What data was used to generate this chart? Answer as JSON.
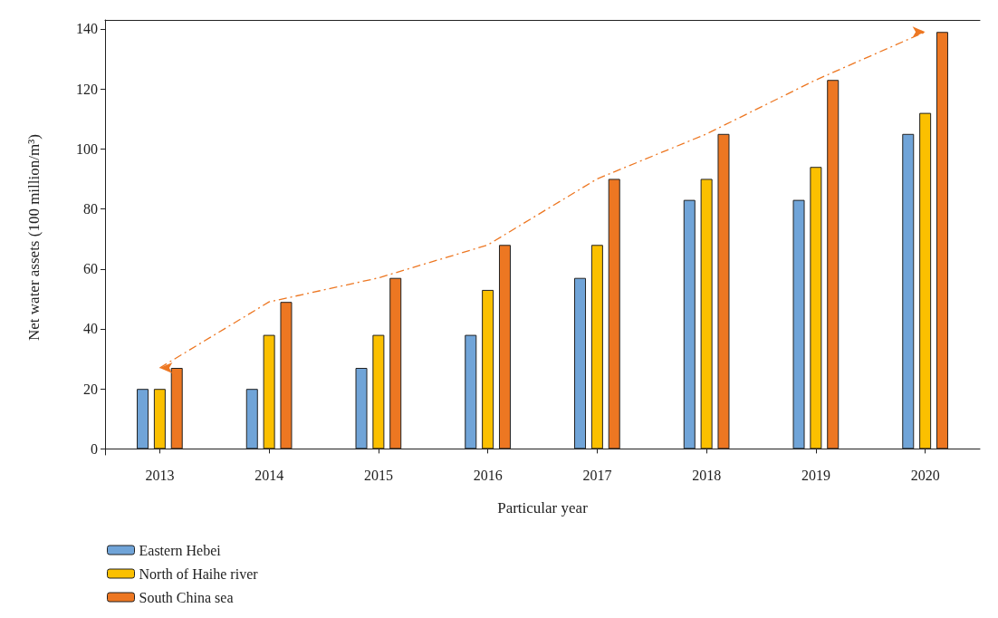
{
  "chart_data": {
    "type": "bar",
    "xlabel": "Particular year",
    "ylabel": "Net water assets (100 million/m³)",
    "categories": [
      "2013",
      "2014",
      "2015",
      "2016",
      "2017",
      "2018",
      "2019",
      "2020"
    ],
    "series": [
      {
        "name": "Eastern Hebei",
        "color": "#70a4d8",
        "values": [
          20,
          20,
          27,
          38,
          57,
          83,
          83,
          105
        ]
      },
      {
        "name": "North of Haihe river",
        "color": "#fbc000",
        "values": [
          20,
          38,
          38,
          53,
          68,
          90,
          94,
          112
        ]
      },
      {
        "name": "South China sea",
        "color": "#ed7722",
        "values": [
          27,
          49,
          57,
          68,
          90,
          105,
          123,
          139
        ]
      },
      {
        "type": "line",
        "color": "#ed7722",
        "values": [
          27,
          49,
          57,
          68,
          90,
          105,
          123,
          139
        ],
        "line_style": "dashed",
        "marker": "none"
      }
    ],
    "ylim": [
      -2,
      143
    ],
    "yticks": [
      0,
      20,
      40,
      60,
      80,
      100,
      120,
      140
    ],
    "grid": false,
    "legend": "bottom left"
  }
}
